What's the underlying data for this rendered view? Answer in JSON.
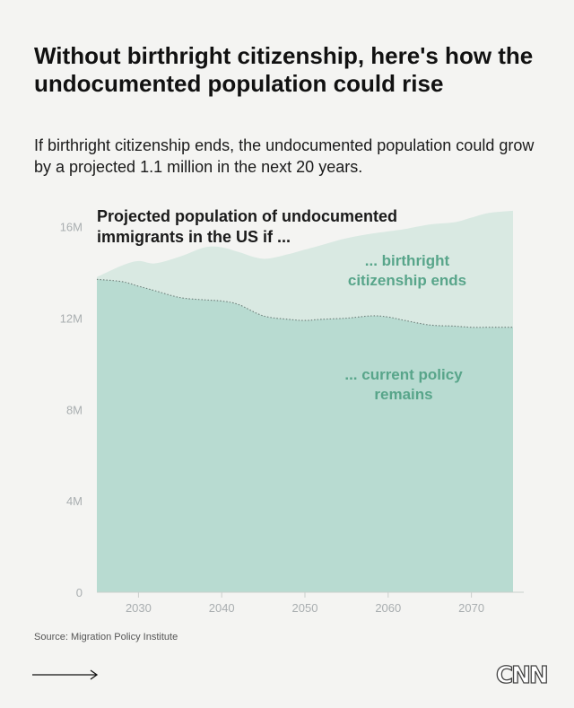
{
  "title": "Without birthright citizenship, here's how the undocumented population could rise",
  "subtitle": "If birthright citizenship ends, the undocumented population could grow by a projected 1.1 million in the next 20 years.",
  "source": "Source: Migration Policy Institute",
  "logo": "CNN",
  "colors": {
    "background": "#f4f4f2",
    "birthright_fill": "#d9e9e2",
    "current_fill": "#b8dbd1",
    "label_color": "#58a58a"
  },
  "chart_data": {
    "type": "area",
    "title": "Projected population of undocumented immigrants in the US if ...",
    "xlabel": "",
    "ylabel": "",
    "x": [
      2025,
      2028,
      2030,
      2032,
      2035,
      2038,
      2040,
      2042,
      2045,
      2048,
      2050,
      2052,
      2055,
      2058,
      2060,
      2062,
      2065,
      2068,
      2070,
      2072,
      2075
    ],
    "series": [
      {
        "name": "... birthright citizenship ends",
        "values": [
          13.8,
          14.3,
          14.5,
          14.4,
          14.7,
          15.1,
          15.1,
          14.9,
          14.6,
          14.8,
          15.0,
          15.2,
          15.5,
          15.7,
          15.8,
          15.9,
          16.1,
          16.2,
          16.4,
          16.6,
          16.7
        ]
      },
      {
        "name": "... current policy remains",
        "values": [
          13.7,
          13.6,
          13.4,
          13.2,
          12.9,
          12.8,
          12.75,
          12.6,
          12.1,
          11.95,
          11.9,
          11.95,
          12.0,
          12.1,
          12.05,
          11.9,
          11.7,
          11.65,
          11.6,
          11.6,
          11.6
        ]
      }
    ],
    "ylim": [
      0,
      16.5
    ],
    "xlim": [
      2025,
      2075
    ],
    "yticks": [
      "0",
      "4M",
      "8M",
      "12M",
      "16M"
    ],
    "ytick_values": [
      0,
      4,
      8,
      12,
      16
    ],
    "xticks": [
      "2030",
      "2040",
      "2050",
      "2060",
      "2070"
    ],
    "xtick_values": [
      2030,
      2040,
      2050,
      2060,
      2070
    ],
    "grid": false,
    "legend": "inline labels"
  }
}
